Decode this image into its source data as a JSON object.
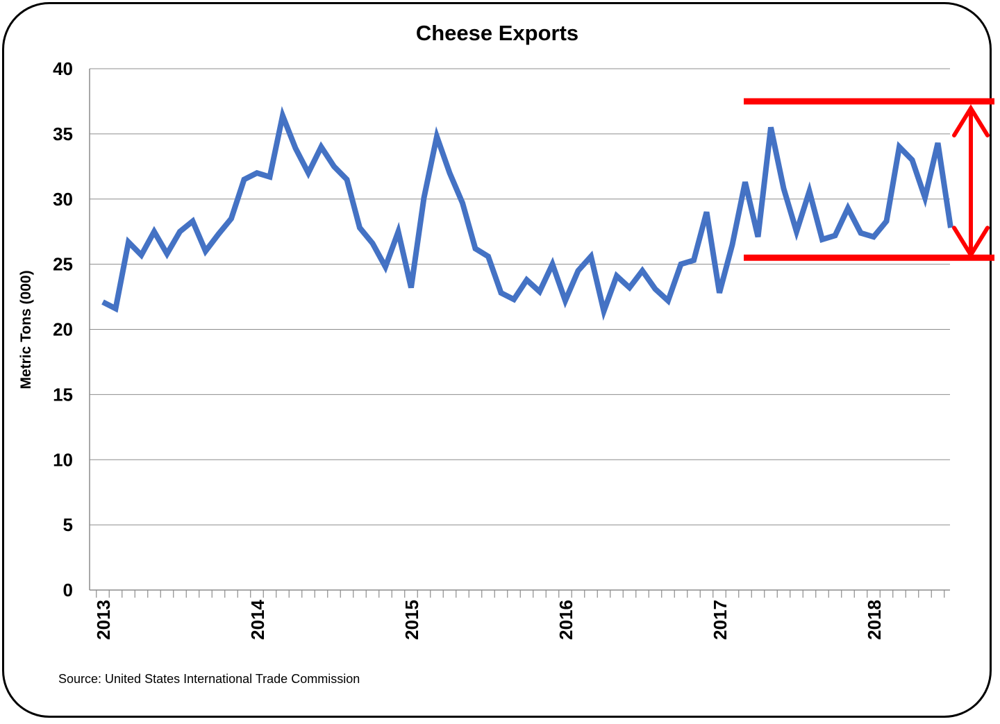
{
  "chart_data": {
    "type": "line",
    "title": "Cheese Exports",
    "xlabel": "",
    "ylabel": "Metric Tons (000)",
    "ylim": [
      0,
      40
    ],
    "yticks": [
      0,
      5,
      10,
      15,
      20,
      25,
      30,
      35,
      40
    ],
    "x_tick_labels": [
      "2013",
      "2014",
      "2015",
      "2016",
      "2017",
      "2018"
    ],
    "x_start": "2013-01",
    "grid": true,
    "legend": "none",
    "source": "Source: United States International Trade Commission",
    "series": [
      {
        "color": "#4472C4",
        "x": [
          "2013-01",
          "2013-02",
          "2013-03",
          "2013-04",
          "2013-05",
          "2013-06",
          "2013-07",
          "2013-08",
          "2013-09",
          "2013-10",
          "2013-11",
          "2013-12",
          "2014-01",
          "2014-02",
          "2014-03",
          "2014-04",
          "2014-05",
          "2014-06",
          "2014-07",
          "2014-08",
          "2014-09",
          "2014-10",
          "2014-11",
          "2014-12",
          "2015-01",
          "2015-02",
          "2015-03",
          "2015-04",
          "2015-05",
          "2015-06",
          "2015-07",
          "2015-08",
          "2015-09",
          "2015-10",
          "2015-11",
          "2015-12",
          "2016-01",
          "2016-02",
          "2016-03",
          "2016-04",
          "2016-05",
          "2016-06",
          "2016-07",
          "2016-08",
          "2016-09",
          "2016-10",
          "2016-11",
          "2016-12",
          "2017-01",
          "2017-02",
          "2017-03",
          "2017-04",
          "2017-05",
          "2017-06",
          "2017-07",
          "2017-08",
          "2017-09",
          "2017-10",
          "2017-11",
          "2017-12",
          "2018-01",
          "2018-02",
          "2018-03",
          "2018-04",
          "2018-05",
          "2018-06",
          "2018-07"
        ],
        "values": [
          22.1,
          21.6,
          26.7,
          25.7,
          27.5,
          25.8,
          27.5,
          28.3,
          26.0,
          27.3,
          28.5,
          31.5,
          32.0,
          31.7,
          36.4,
          33.9,
          32.0,
          34.0,
          32.5,
          31.5,
          27.8,
          26.6,
          24.8,
          27.5,
          23.2,
          30.1,
          34.8,
          32.0,
          29.7,
          26.2,
          25.6,
          22.8,
          22.3,
          23.8,
          22.9,
          25.0,
          22.2,
          24.5,
          25.6,
          21.4,
          24.1,
          23.2,
          24.5,
          23.1,
          22.2,
          25.0,
          25.3,
          29.0,
          22.8,
          26.5,
          31.3,
          27.1,
          35.5,
          30.8,
          27.5,
          30.6,
          26.9,
          27.2,
          29.3,
          27.4,
          27.1,
          28.3,
          34.0,
          33.0,
          30.1,
          34.3,
          27.8
        ]
      }
    ],
    "annotations": [
      {
        "type": "horizontal-line",
        "y": 37.5,
        "from_x": "2017-03",
        "color": "#FF0000"
      },
      {
        "type": "horizontal-line",
        "y": 25.5,
        "from_x": "2017-03",
        "color": "#FF0000"
      },
      {
        "type": "double-arrow",
        "from_y": 37.5,
        "to_y": 25.5,
        "x": "2018-09",
        "color": "#FF0000"
      }
    ]
  }
}
